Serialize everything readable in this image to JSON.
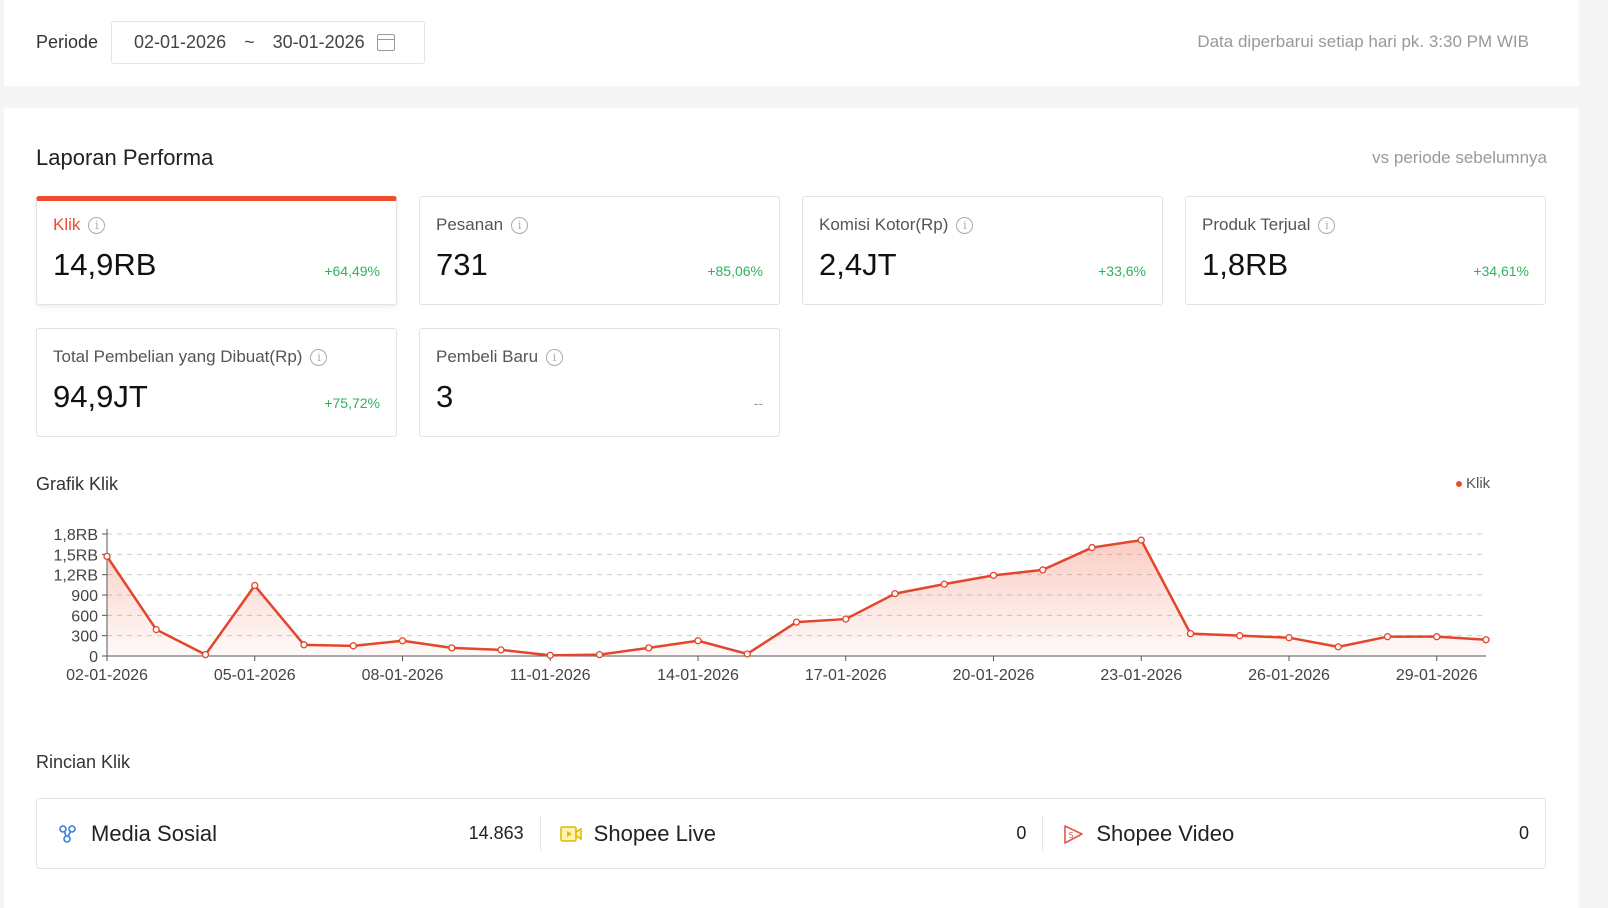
{
  "header": {
    "period_label": "Periode",
    "date_start": "02-01-2026",
    "date_sep": "~",
    "date_end": "30-01-2026",
    "updated_note": "Data diperbarui setiap hari pk. 3:30 PM WIB"
  },
  "report": {
    "title": "Laporan Performa",
    "compare": "vs periode sebelumnya"
  },
  "metrics": [
    {
      "label": "Klik",
      "value": "14,9RB",
      "change": "+64,49%"
    },
    {
      "label": "Pesanan",
      "value": "731",
      "change": "+85,06%"
    },
    {
      "label": "Komisi Kotor(Rp)",
      "value": "2,4JT",
      "change": "+33,6%"
    },
    {
      "label": "Produk Terjual",
      "value": "1,8RB",
      "change": "+34,61%"
    },
    {
      "label": "Total Pembelian yang Dibuat(Rp)",
      "value": "94,9JT",
      "change": "+75,72%"
    },
    {
      "label": "Pembeli Baru",
      "value": "3",
      "change": "--"
    }
  ],
  "chart_title": "Grafik Klik",
  "chart_data": {
    "type": "area",
    "title": "Grafik Klik",
    "legend": [
      "Klik"
    ],
    "legend_position": "top-right",
    "color": "#ee4d2d",
    "x": [
      "02-01-2026",
      "03-01-2026",
      "04-01-2026",
      "05-01-2026",
      "06-01-2026",
      "07-01-2026",
      "08-01-2026",
      "09-01-2026",
      "10-01-2026",
      "11-01-2026",
      "12-01-2026",
      "13-01-2026",
      "14-01-2026",
      "15-01-2026",
      "16-01-2026",
      "17-01-2026",
      "18-01-2026",
      "19-01-2026",
      "20-01-2026",
      "21-01-2026",
      "22-01-2026",
      "23-01-2026",
      "24-01-2026",
      "25-01-2026",
      "26-01-2026",
      "27-01-2026",
      "28-01-2026",
      "29-01-2026",
      "30-01-2026"
    ],
    "series": [
      {
        "name": "Klik",
        "values": [
          1470,
          390,
          20,
          1040,
          165,
          150,
          225,
          120,
          90,
          10,
          20,
          120,
          225,
          30,
          500,
          545,
          920,
          1060,
          1190,
          1270,
          1600,
          1710,
          330,
          300,
          270,
          135,
          285,
          285,
          240
        ]
      }
    ],
    "x_tick_labels": [
      "02-01-2026",
      "05-01-2026",
      "08-01-2026",
      "11-01-2026",
      "14-01-2026",
      "17-01-2026",
      "20-01-2026",
      "23-01-2026",
      "26-01-2026",
      "29-01-2026"
    ],
    "y_ticks": [
      0,
      300,
      600,
      900,
      1200,
      1500,
      1800
    ],
    "y_tick_labels": [
      "0",
      "300",
      "600",
      "900",
      "1,2RB",
      "1,5RB",
      "1,8RB"
    ],
    "ylim": [
      0,
      1800
    ],
    "grid": true
  },
  "breakdown": {
    "title": "Rincian Klik",
    "items": [
      {
        "label": "Media Sosial",
        "count": "14.863"
      },
      {
        "label": "Shopee Live",
        "count": "0"
      },
      {
        "label": "Shopee Video",
        "count": "0"
      }
    ]
  }
}
